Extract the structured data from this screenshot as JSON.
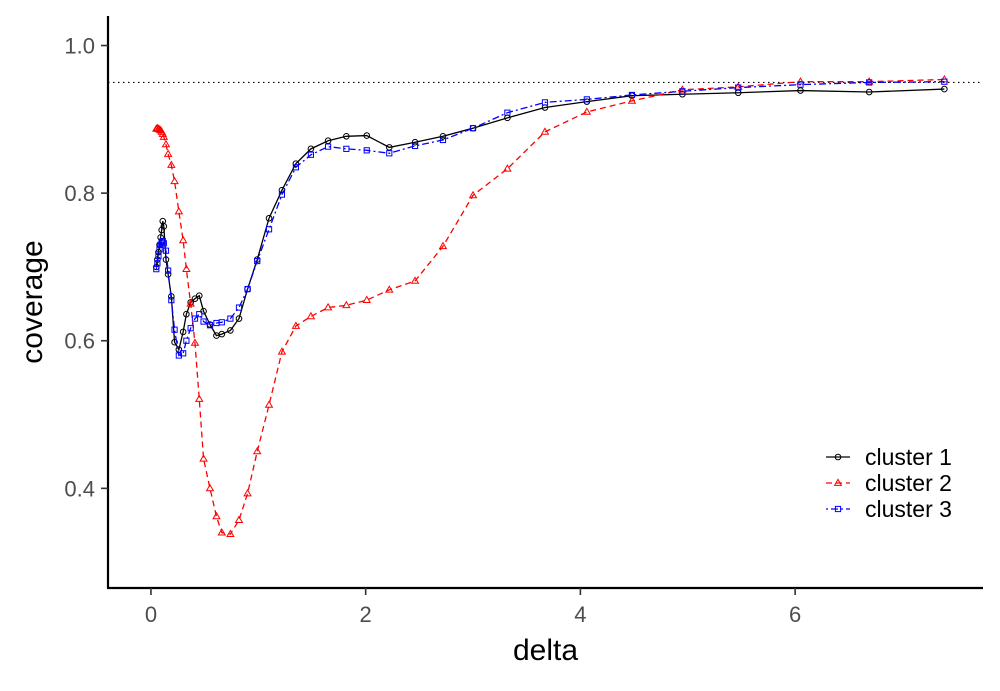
{
  "chart_data": {
    "type": "line",
    "xlabel": "delta",
    "ylabel": "coverage",
    "xlim": [
      -0.4,
      7.75
    ],
    "ylim": [
      0.265,
      1.04
    ],
    "xticks": [
      0,
      2,
      4,
      6
    ],
    "yticks": [
      0.4,
      0.6,
      0.8,
      1.0
    ],
    "xtick_labels": [
      "0",
      "2",
      "4",
      "6"
    ],
    "ytick_labels": [
      "0.4",
      "0.6",
      "0.8",
      "1.0"
    ],
    "grid": false,
    "legend_position": "bottom-right",
    "reference_line": {
      "y": 0.95,
      "style": "dotted"
    },
    "series": [
      {
        "name": "cluster 1",
        "color": "#000000",
        "marker": "circle",
        "dash": "solid",
        "x": [
          0.05,
          0.06,
          0.07,
          0.08,
          0.09,
          0.1,
          0.11,
          0.12,
          0.14,
          0.16,
          0.19,
          0.22,
          0.26,
          0.3,
          0.33,
          0.37,
          0.41,
          0.45,
          0.49,
          0.55,
          0.61,
          0.66,
          0.74,
          0.82,
          0.9,
          0.99,
          1.1,
          1.22,
          1.35,
          1.49,
          1.65,
          1.82,
          2.01,
          2.22,
          2.46,
          2.72,
          3.0,
          3.32,
          3.67,
          4.06,
          4.48,
          4.95,
          5.47,
          6.05,
          6.69,
          7.39
        ],
        "values": [
          0.7,
          0.71,
          0.72,
          0.73,
          0.74,
          0.75,
          0.762,
          0.755,
          0.71,
          0.69,
          0.66,
          0.598,
          0.588,
          0.612,
          0.636,
          0.652,
          0.657,
          0.661,
          0.64,
          0.622,
          0.607,
          0.609,
          0.614,
          0.63,
          0.67,
          0.71,
          0.766,
          0.804,
          0.84,
          0.86,
          0.871,
          0.877,
          0.878,
          0.862,
          0.869,
          0.877,
          0.888,
          0.902,
          0.916,
          0.924,
          0.932,
          0.934,
          0.936,
          0.939,
          0.937,
          0.941
        ]
      },
      {
        "name": "cluster 2",
        "color": "#ff0000",
        "marker": "triangle",
        "dash": "dashed",
        "x": [
          0.05,
          0.06,
          0.07,
          0.08,
          0.09,
          0.1,
          0.11,
          0.12,
          0.14,
          0.16,
          0.19,
          0.22,
          0.26,
          0.3,
          0.33,
          0.37,
          0.41,
          0.45,
          0.49,
          0.55,
          0.61,
          0.66,
          0.74,
          0.82,
          0.9,
          0.99,
          1.1,
          1.22,
          1.35,
          1.49,
          1.65,
          1.82,
          2.01,
          2.22,
          2.46,
          2.72,
          3.0,
          3.32,
          3.67,
          4.06,
          4.48,
          4.95,
          5.47,
          6.05,
          6.69,
          7.39
        ],
        "values": [
          0.887,
          0.888,
          0.887,
          0.886,
          0.885,
          0.883,
          0.88,
          0.876,
          0.866,
          0.853,
          0.838,
          0.816,
          0.775,
          0.736,
          0.697,
          0.65,
          0.597,
          0.521,
          0.44,
          0.4,
          0.362,
          0.34,
          0.338,
          0.357,
          0.393,
          0.45,
          0.513,
          0.585,
          0.62,
          0.633,
          0.645,
          0.648,
          0.655,
          0.669,
          0.681,
          0.728,
          0.797,
          0.833,
          0.883,
          0.91,
          0.925,
          0.94,
          0.944,
          0.951,
          0.951,
          0.954
        ]
      },
      {
        "name": "cluster 3",
        "color": "#0000ff",
        "marker": "square",
        "dash": "dotdash",
        "x": [
          0.05,
          0.06,
          0.07,
          0.08,
          0.09,
          0.1,
          0.11,
          0.12,
          0.14,
          0.16,
          0.19,
          0.22,
          0.26,
          0.3,
          0.33,
          0.37,
          0.41,
          0.45,
          0.49,
          0.55,
          0.61,
          0.66,
          0.74,
          0.82,
          0.9,
          0.99,
          1.1,
          1.22,
          1.35,
          1.49,
          1.65,
          1.82,
          2.01,
          2.22,
          2.46,
          2.72,
          3.0,
          3.32,
          3.67,
          4.06,
          4.48,
          4.95,
          5.47,
          6.05,
          6.69,
          7.39
        ],
        "values": [
          0.697,
          0.705,
          0.715,
          0.724,
          0.73,
          0.734,
          0.735,
          0.732,
          0.722,
          0.695,
          0.655,
          0.615,
          0.58,
          0.583,
          0.6,
          0.617,
          0.63,
          0.636,
          0.626,
          0.621,
          0.624,
          0.625,
          0.63,
          0.645,
          0.67,
          0.708,
          0.751,
          0.798,
          0.835,
          0.852,
          0.863,
          0.86,
          0.858,
          0.854,
          0.864,
          0.872,
          0.888,
          0.909,
          0.923,
          0.927,
          0.933,
          0.938,
          0.943,
          0.947,
          0.95,
          0.951
        ]
      }
    ]
  }
}
